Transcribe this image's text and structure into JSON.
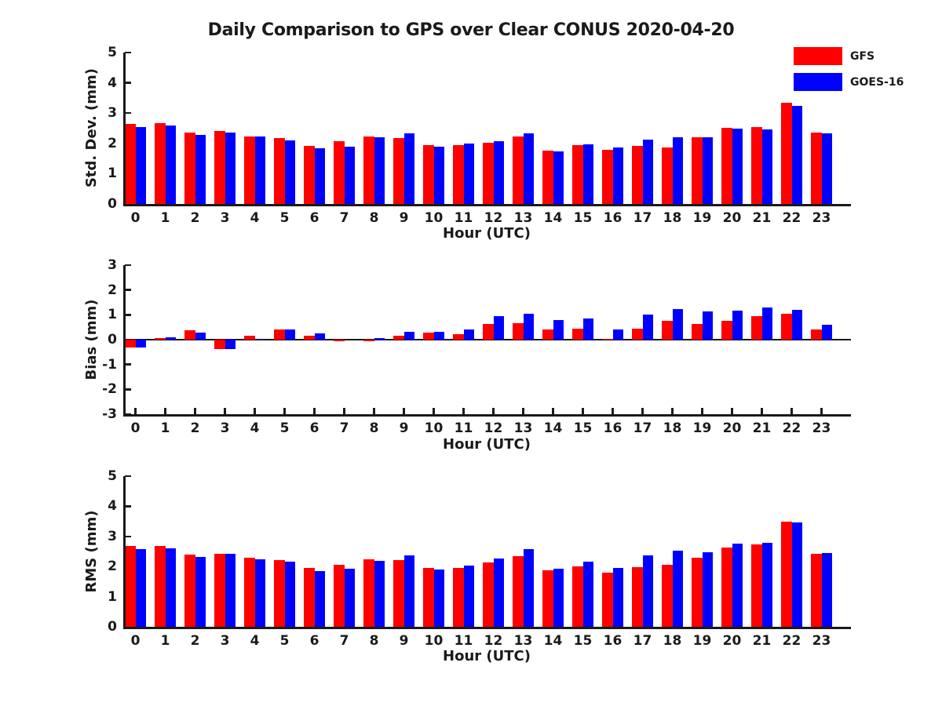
{
  "title": "Daily Comparison to GPS over Clear CONUS 2020-04-20",
  "legend": {
    "items": [
      {
        "label": "GFS",
        "color": "#ff0000"
      },
      {
        "label": "GOES-16",
        "color": "#0000ff"
      }
    ]
  },
  "colors": {
    "gfs": "#ff0000",
    "goes16": "#0000ff",
    "axis": "#1a1a1a"
  },
  "chart_data": [
    {
      "type": "bar",
      "panel": "std-dev",
      "ylabel": "Std. Dev. (mm)",
      "xlabel": "Hour (UTC)",
      "ylim": [
        0,
        5
      ],
      "yticks": [
        0,
        1,
        2,
        3,
        4,
        5
      ],
      "grid": false,
      "categories": [
        "0",
        "1",
        "2",
        "3",
        "4",
        "5",
        "6",
        "7",
        "8",
        "9",
        "10",
        "11",
        "12",
        "13",
        "14",
        "15",
        "16",
        "17",
        "18",
        "19",
        "20",
        "21",
        "22",
        "23"
      ],
      "series": [
        {
          "name": "GFS",
          "color": "#ff0000",
          "values": [
            2.64,
            2.66,
            2.35,
            2.4,
            2.24,
            2.18,
            1.93,
            2.07,
            2.24,
            2.18,
            1.95,
            1.95,
            2.02,
            2.24,
            1.76,
            1.95,
            1.8,
            1.92,
            1.87,
            2.2,
            2.51,
            2.55,
            3.34,
            2.36
          ]
        },
        {
          "name": "GOES-16",
          "color": "#0000ff",
          "values": [
            2.55,
            2.6,
            2.28,
            2.37,
            2.24,
            2.09,
            1.85,
            1.89,
            2.19,
            2.33,
            1.88,
            2.0,
            2.06,
            2.34,
            1.73,
            1.98,
            1.87,
            2.13,
            2.2,
            2.2,
            2.5,
            2.45,
            3.24,
            2.34
          ]
        }
      ]
    },
    {
      "type": "bar",
      "panel": "bias",
      "ylabel": "Bias (mm)",
      "xlabel": "Hour (UTC)",
      "ylim": [
        -3,
        3
      ],
      "yticks": [
        -3,
        -2,
        -1,
        0,
        1,
        2,
        3
      ],
      "zero_line": true,
      "grid": false,
      "categories": [
        "0",
        "1",
        "2",
        "3",
        "4",
        "5",
        "6",
        "7",
        "8",
        "9",
        "10",
        "11",
        "12",
        "13",
        "14",
        "15",
        "16",
        "17",
        "18",
        "19",
        "20",
        "21",
        "22",
        "23"
      ],
      "series": [
        {
          "name": "GFS",
          "color": "#ff0000",
          "values": [
            -0.3,
            0.05,
            0.38,
            -0.37,
            0.16,
            0.42,
            0.15,
            -0.05,
            -0.06,
            0.16,
            0.28,
            0.22,
            0.64,
            0.65,
            0.42,
            0.45,
            0.02,
            0.43,
            0.77,
            0.63,
            0.75,
            0.95,
            1.05,
            0.42
          ]
        },
        {
          "name": "GOES-16",
          "color": "#0000ff",
          "values": [
            -0.32,
            0.09,
            0.27,
            -0.37,
            0.04,
            0.4,
            0.24,
            0.0,
            0.06,
            0.33,
            0.31,
            0.4,
            0.95,
            1.05,
            0.8,
            0.86,
            0.4,
            1.0,
            1.23,
            1.15,
            1.17,
            1.3,
            1.21,
            0.6
          ]
        }
      ]
    },
    {
      "type": "bar",
      "panel": "rms",
      "ylabel": "RMS (mm)",
      "xlabel": "Hour (UTC)",
      "ylim": [
        0,
        5
      ],
      "yticks": [
        0,
        1,
        2,
        3,
        4,
        5
      ],
      "grid": false,
      "categories": [
        "0",
        "1",
        "2",
        "3",
        "4",
        "5",
        "6",
        "7",
        "8",
        "9",
        "10",
        "11",
        "12",
        "13",
        "14",
        "15",
        "16",
        "17",
        "18",
        "19",
        "20",
        "21",
        "22",
        "23"
      ],
      "series": [
        {
          "name": "GFS",
          "color": "#ff0000",
          "values": [
            2.68,
            2.68,
            2.4,
            2.43,
            2.28,
            2.22,
            1.95,
            2.06,
            2.25,
            2.21,
            1.96,
            1.96,
            2.13,
            2.35,
            1.87,
            2.01,
            1.79,
            1.98,
            2.06,
            2.29,
            2.62,
            2.73,
            3.5,
            2.42
          ]
        },
        {
          "name": "GOES-16",
          "color": "#0000ff",
          "values": [
            2.58,
            2.61,
            2.33,
            2.42,
            2.25,
            2.15,
            1.86,
            1.92,
            2.2,
            2.36,
            1.91,
            2.04,
            2.27,
            2.58,
            1.93,
            2.17,
            1.95,
            2.38,
            2.53,
            2.47,
            2.77,
            2.78,
            3.46,
            2.45
          ]
        }
      ]
    }
  ]
}
